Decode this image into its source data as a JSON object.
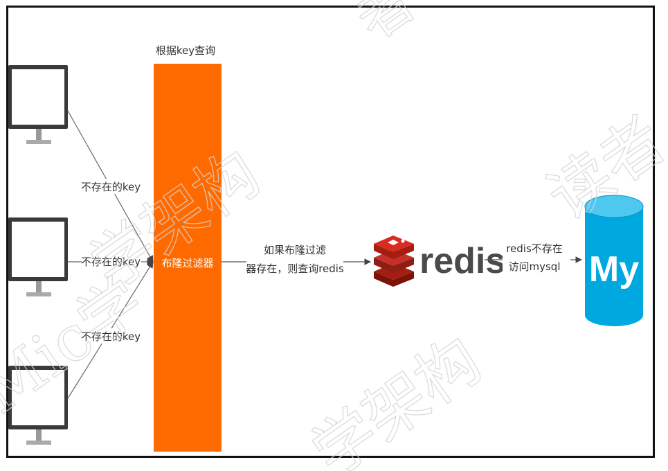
{
  "colors": {
    "filter": "#FF6A00",
    "redis_red": "#C6302B",
    "mysql_blue": "#00A8E0",
    "monitor_dark": "#3A3A3A",
    "line": "#555555",
    "watermark": "#cfcfcf"
  },
  "filter": {
    "caption": "根据key查询",
    "label": "布隆过滤器"
  },
  "clients": [
    {
      "edge_label": "不存在的key"
    },
    {
      "edge_label": "不存在的key"
    },
    {
      "edge_label": "不存在的key"
    }
  ],
  "edge_filter_redis": {
    "line1": "如果布隆过滤",
    "line2": "器存在，则查询redis"
  },
  "redis": {
    "logo_text": "redis",
    "icon": "redis-stack-icon"
  },
  "edge_redis_mysql": {
    "line1": "redis不存在",
    "line2": "访问mysql"
  },
  "mysql": {
    "logo_text": "My",
    "icon": "database-cylinder-icon"
  },
  "watermark": {
    "text": "读者Mic学架构",
    "fragments": [
      "者",
      "学架构",
      "Mic学",
      "学架构",
      "读者"
    ]
  }
}
